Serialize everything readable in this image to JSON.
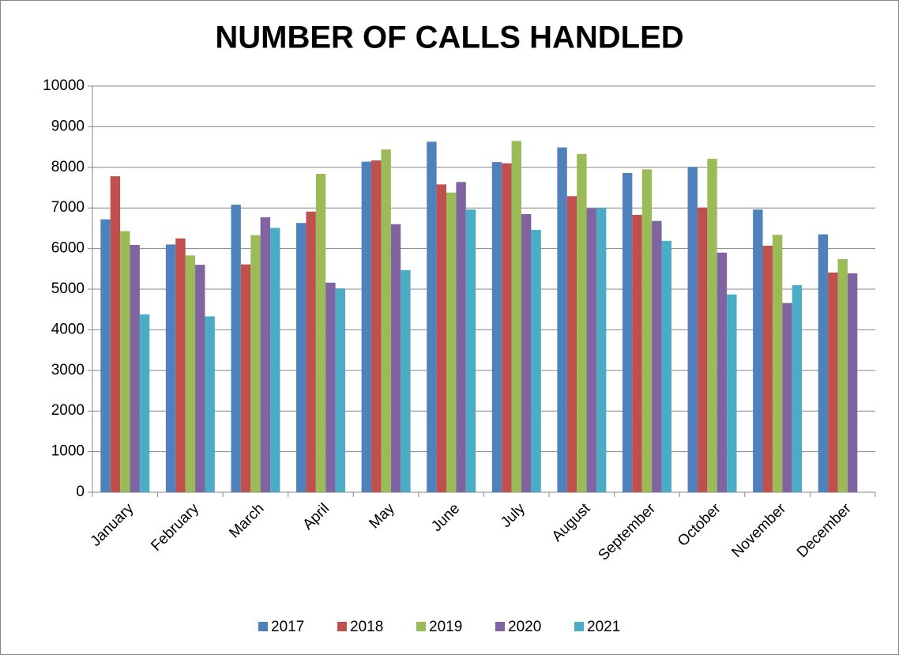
{
  "chart_data": {
    "type": "bar",
    "title": "NUMBER OF CALLS HANDLED",
    "categories": [
      "January",
      "February",
      "March",
      "April",
      "May",
      "June",
      "July",
      "August",
      "September",
      "October",
      "November",
      "December"
    ],
    "series": [
      {
        "name": "2017",
        "color": "#4f81bd",
        "values": [
          6720,
          6100,
          7080,
          6630,
          8140,
          8630,
          8130,
          8490,
          7860,
          8010,
          6960,
          6350
        ]
      },
      {
        "name": "2018",
        "color": "#c0504d",
        "values": [
          7780,
          6250,
          5610,
          6910,
          8170,
          7580,
          8100,
          7290,
          6830,
          7010,
          6070,
          5410
        ]
      },
      {
        "name": "2019",
        "color": "#9bbb59",
        "values": [
          6430,
          5830,
          6330,
          7840,
          8440,
          7380,
          8650,
          8330,
          7950,
          8210,
          6340,
          5740
        ]
      },
      {
        "name": "2020",
        "color": "#8064a2",
        "values": [
          6090,
          5600,
          6770,
          5160,
          6600,
          7640,
          6850,
          6990,
          6680,
          5900,
          4660,
          5390
        ]
      },
      {
        "name": "2021",
        "color": "#4bacc6",
        "values": [
          4380,
          4330,
          6510,
          5020,
          5470,
          6960,
          6460,
          7000,
          6190,
          4870,
          5100,
          null
        ]
      }
    ],
    "ylim": [
      0,
      10000
    ],
    "yticks": [
      0,
      1000,
      2000,
      3000,
      4000,
      5000,
      6000,
      7000,
      8000,
      9000,
      10000
    ],
    "grid": true,
    "legend": "bottom"
  }
}
